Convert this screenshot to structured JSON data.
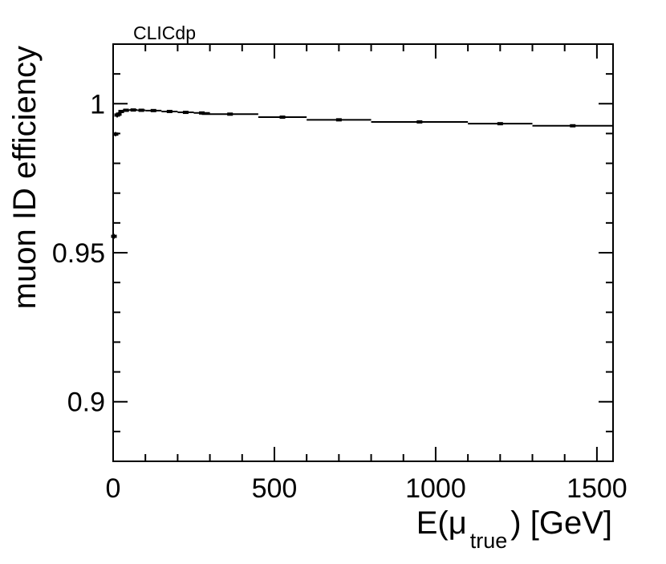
{
  "chart_data": {
    "type": "scatter",
    "title": "",
    "annotation": "CLICdp",
    "xlabel": {
      "prefix": "E(μ",
      "subscript": "true",
      "suffix": ") [GeV]"
    },
    "ylabel": "muon ID efficiency",
    "xlim": [
      0,
      1550
    ],
    "ylim": [
      0.88,
      1.02
    ],
    "xticks": [
      0,
      500,
      1000,
      1500
    ],
    "xtick_labels": [
      "0",
      "500",
      "1000",
      "1500"
    ],
    "yticks": [
      0.9,
      0.95,
      1.0
    ],
    "ytick_labels": [
      "0.9",
      "0.95",
      "1"
    ],
    "grid": false,
    "legend": "none",
    "series": [
      {
        "points": [
          {
            "x": 2.5,
            "xerr": 2.5,
            "y": 0.9555,
            "yerr": 0.0008
          },
          {
            "x": 7.5,
            "xerr": 2.5,
            "y": 0.9898,
            "yerr": 0.0007
          },
          {
            "x": 12.5,
            "xerr": 2.5,
            "y": 0.9962,
            "yerr": 0.0008
          },
          {
            "x": 17.5,
            "xerr": 2.5,
            "y": 0.9965,
            "yerr": 0.0007
          },
          {
            "x": 25,
            "xerr": 5,
            "y": 0.9974,
            "yerr": 0.0005
          },
          {
            "x": 40,
            "xerr": 10,
            "y": 0.9978,
            "yerr": 0.0004
          },
          {
            "x": 62.5,
            "xerr": 12.5,
            "y": 0.9979,
            "yerr": 0.0003
          },
          {
            "x": 87.5,
            "xerr": 12.5,
            "y": 0.9978,
            "yerr": 0.0003
          },
          {
            "x": 125,
            "xerr": 25,
            "y": 0.9977,
            "yerr": 0.0003
          },
          {
            "x": 175,
            "xerr": 25,
            "y": 0.9974,
            "yerr": 0.0003
          },
          {
            "x": 225,
            "xerr": 25,
            "y": 0.9971,
            "yerr": 0.0003
          },
          {
            "x": 275,
            "xerr": 25,
            "y": 0.9969,
            "yerr": 0.0003
          },
          {
            "x": 362.5,
            "xerr": 87.5,
            "y": 0.9965,
            "yerr": 0.0003
          },
          {
            "x": 525,
            "xerr": 75,
            "y": 0.9955,
            "yerr": 0.0004
          },
          {
            "x": 700,
            "xerr": 100,
            "y": 0.9946,
            "yerr": 0.0003
          },
          {
            "x": 950,
            "xerr": 150,
            "y": 0.9939,
            "yerr": 0.0004
          },
          {
            "x": 1200,
            "xerr": 100,
            "y": 0.9933,
            "yerr": 0.0003
          },
          {
            "x": 1425,
            "xerr": 125,
            "y": 0.9926,
            "yerr": 0.0003
          }
        ]
      }
    ]
  }
}
